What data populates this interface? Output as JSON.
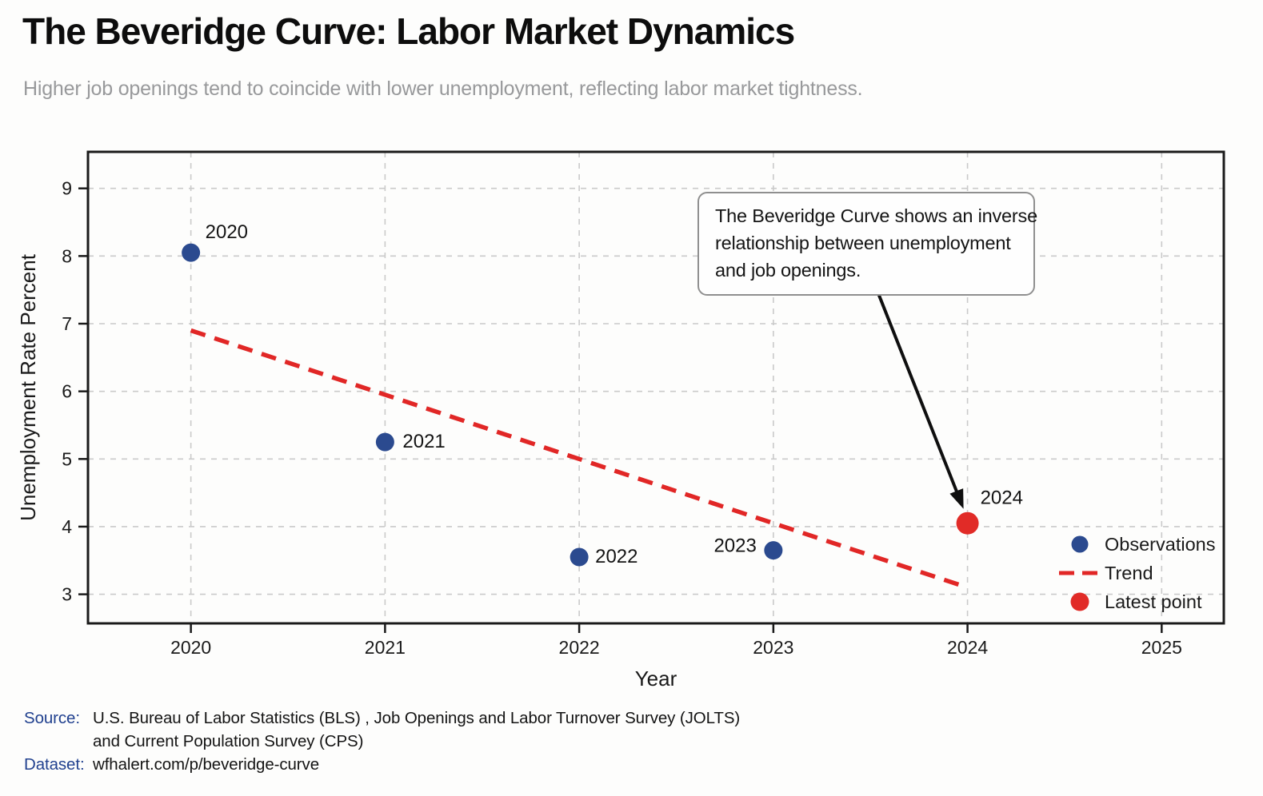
{
  "header": {
    "title": "The Beveridge Curve: Labor Market Dynamics",
    "subtitle": "Higher job openings tend to coincide with lower unemployment, reflecting labor market tightness."
  },
  "footer": {
    "source_label": "Source:",
    "source_line1": "U.S. Bureau of Labor Statistics (BLS) , Job Openings and Labor Turnover Survey (JOLTS)",
    "source_line2": "and Current Population Survey (CPS)",
    "dataset_label": "Dataset:",
    "dataset_value": "wfhalert.com/p/beveridge-curve"
  },
  "colors": {
    "observation": "#2b4a8f",
    "trend": "#e12726",
    "latest": "#e12b27",
    "grid": "#cacaca",
    "spine": "#1a1a1a",
    "tick_label": "#1a1a1a",
    "point_label": "#141414",
    "arrow": "#0f0f0f"
  },
  "chart_data": {
    "type": "scatter",
    "title": "",
    "xlabel": "Year",
    "ylabel": "Unemployment Rate Percent",
    "x_ticks": [
      2020,
      2021,
      2022,
      2023,
      2024,
      2025
    ],
    "y_ticks": [
      3,
      4,
      5,
      6,
      7,
      8,
      9
    ],
    "xlim": [
      2019.47,
      2025.32
    ],
    "ylim": [
      2.57,
      9.54
    ],
    "grid": true,
    "series": [
      {
        "name": "Observations",
        "type": "scatter",
        "color_key": "observation",
        "radius": 11.5,
        "points": [
          {
            "x": 2020,
            "y": 8.05,
            "label": "2020",
            "dx": 18,
            "dy": -26,
            "anchor": "start"
          },
          {
            "x": 2021,
            "y": 5.25,
            "label": "2021",
            "dx": 22,
            "dy": -1,
            "anchor": "start"
          },
          {
            "x": 2022,
            "y": 3.55,
            "label": "2022",
            "dx": 20,
            "dy": -1,
            "anchor": "start"
          },
          {
            "x": 2023,
            "y": 3.65,
            "label": "2023",
            "dx": -21,
            "dy": -6,
            "anchor": "end"
          }
        ]
      },
      {
        "name": "Trend",
        "type": "line",
        "dashed": true,
        "color_key": "trend",
        "points": [
          {
            "x": 2020,
            "y": 6.9
          },
          {
            "x": 2024,
            "y": 3.1
          }
        ]
      },
      {
        "name": "Latest point",
        "type": "scatter",
        "color_key": "latest",
        "radius": 14,
        "points": [
          {
            "x": 2024,
            "y": 4.05,
            "label": "2024",
            "dx": 16,
            "dy": -32,
            "anchor": "start"
          }
        ]
      }
    ],
    "legend": {
      "position": "lower right",
      "items": [
        {
          "marker": "dot",
          "color_key": "observation",
          "label": "Observations"
        },
        {
          "marker": "dash",
          "color_key": "trend",
          "label": "Trend"
        },
        {
          "marker": "dot",
          "color_key": "latest",
          "label": "Latest point"
        }
      ]
    },
    "annotation": {
      "lines": [
        "The Beveridge Curve shows an inverse",
        "relationship between unemployment",
        "and job openings."
      ],
      "arrow_to": {
        "x": 2024,
        "y": 4.05
      }
    }
  }
}
